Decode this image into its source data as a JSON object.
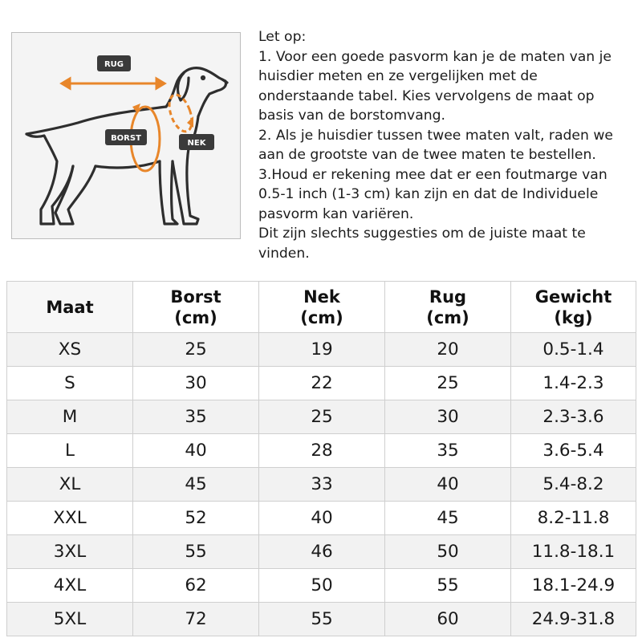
{
  "diagram": {
    "labels": {
      "back": "RUG",
      "chest": "BORST",
      "neck": "NEK"
    },
    "accent": "#e8862a",
    "label_bg": "#3a3a3a"
  },
  "notes": {
    "lines": [
      "Let op:",
      "1. Voor een goede pasvorm kan je de maten van je",
      "huisdier meten en ze vergelijken met de",
      "onderstaande tabel. Kies vervolgens de maat op",
      "basis van de borstomvang.",
      "2. Als je huisdier tussen twee maten valt, raden we",
      "aan de grootste van de twee maten te bestellen.",
      "3.Houd er rekening mee dat er een foutmarge van",
      "0.5-1 inch (1-3 cm) kan zijn en dat de Individuele",
      "pasvorm kan variëren.",
      "Dit zijn slechts suggesties om de juiste maat te",
      "vinden."
    ]
  },
  "table": {
    "headers": [
      {
        "line1": "Maat",
        "line2": ""
      },
      {
        "line1": "Borst",
        "line2": "(cm)"
      },
      {
        "line1": "Nek",
        "line2": "(cm)"
      },
      {
        "line1": "Rug",
        "line2": "(cm)"
      },
      {
        "line1": "Gewicht",
        "line2": "(kg)"
      }
    ],
    "rows": [
      [
        "XS",
        "25",
        "19",
        "20",
        "0.5-1.4"
      ],
      [
        "S",
        "30",
        "22",
        "25",
        "1.4-2.3"
      ],
      [
        "M",
        "35",
        "25",
        "30",
        "2.3-3.6"
      ],
      [
        "L",
        "40",
        "28",
        "35",
        "3.6-5.4"
      ],
      [
        "XL",
        "45",
        "33",
        "40",
        "5.4-8.2"
      ],
      [
        "XXL",
        "52",
        "40",
        "45",
        "8.2-11.8"
      ],
      [
        "3XL",
        "55",
        "46",
        "50",
        "11.8-18.1"
      ],
      [
        "4XL",
        "62",
        "50",
        "55",
        "18.1-24.9"
      ],
      [
        "5XL",
        "72",
        "55",
        "60",
        "24.9-31.8"
      ]
    ]
  }
}
